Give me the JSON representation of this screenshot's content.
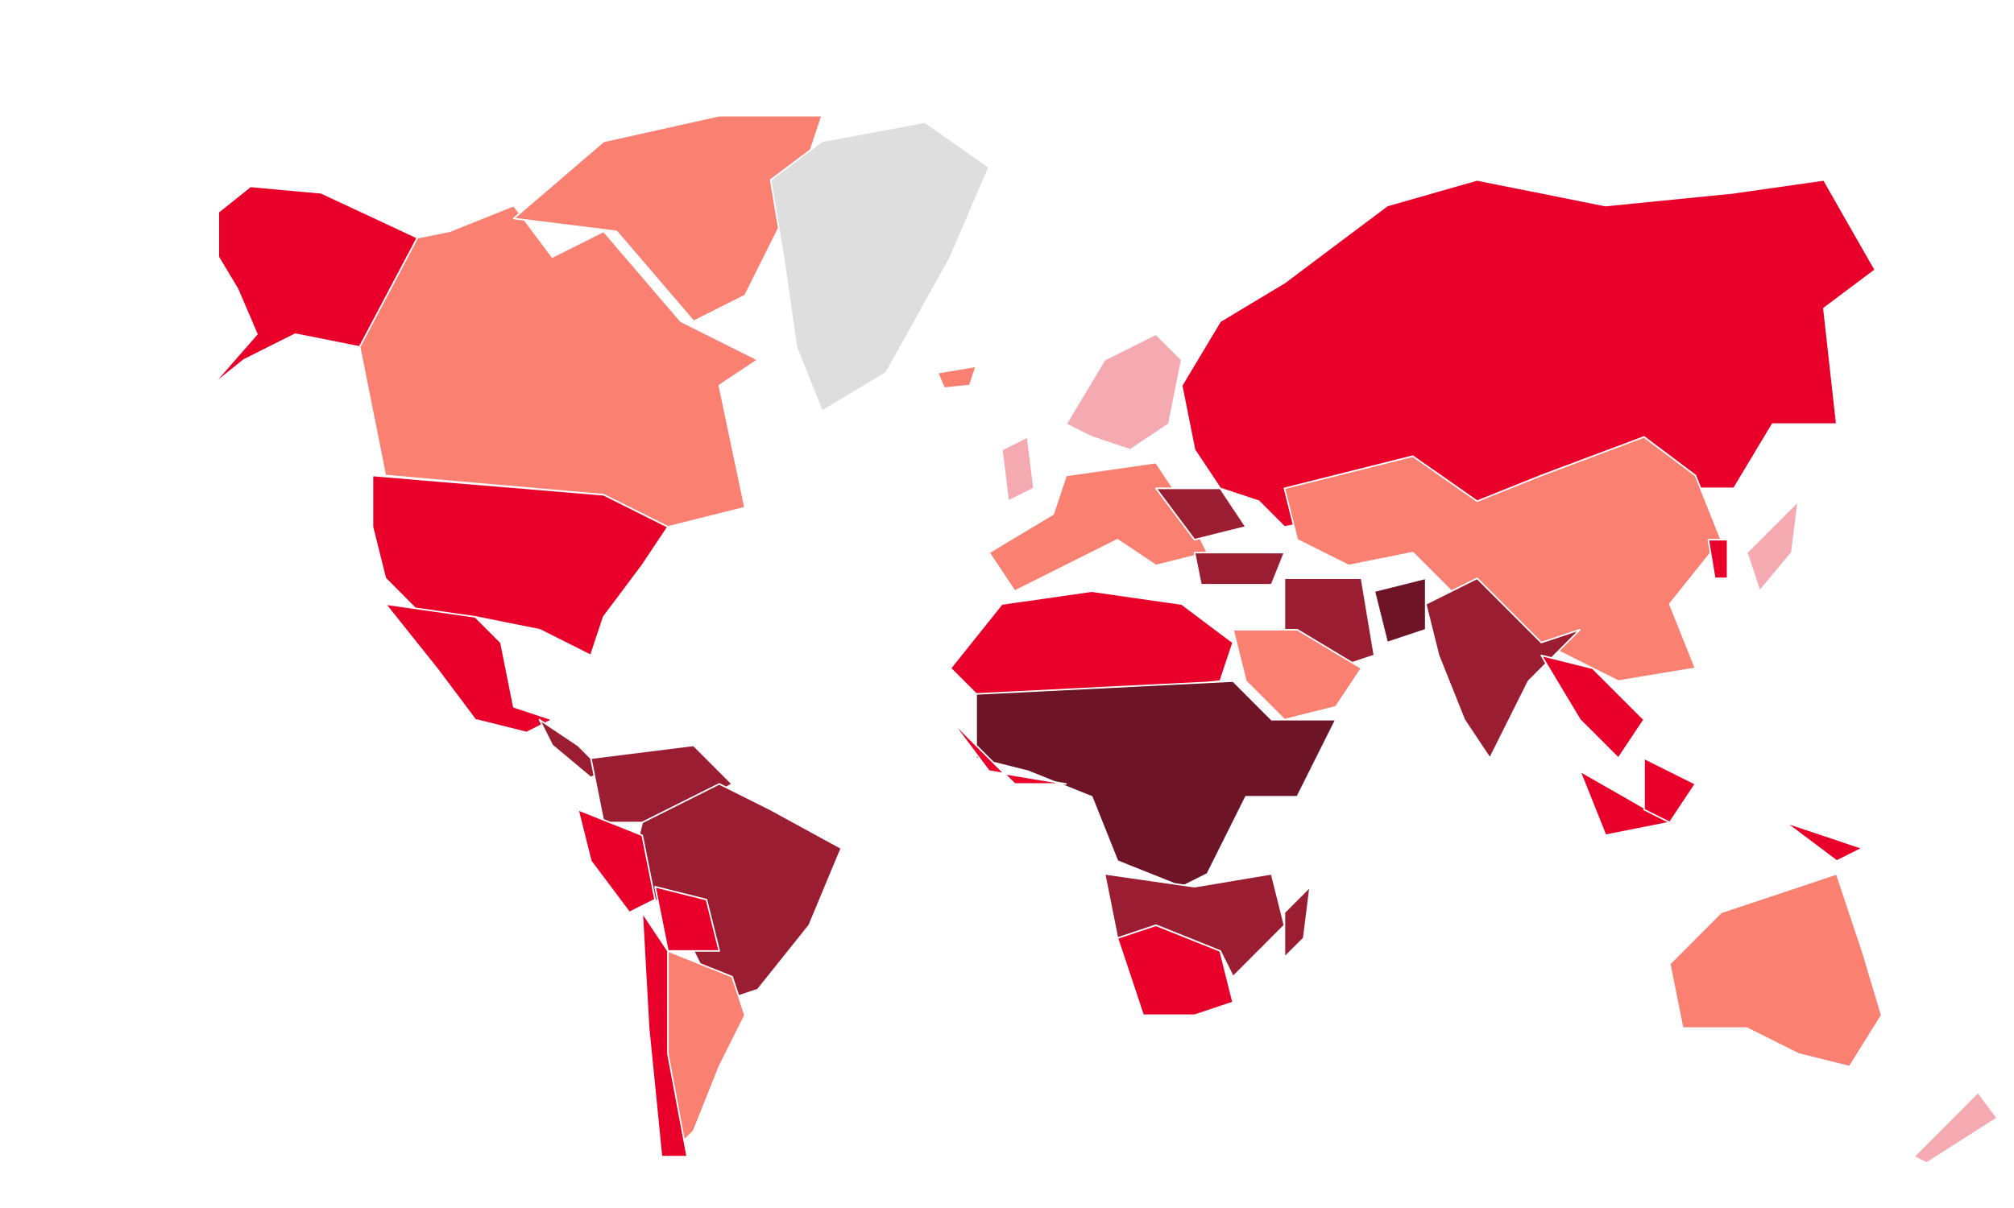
{
  "map": {
    "palette": [
      "#f5aab1",
      "#fa8072",
      "#e8002a",
      "#9b1d32",
      "#6d1527",
      "#dedede"
    ]
  }
}
